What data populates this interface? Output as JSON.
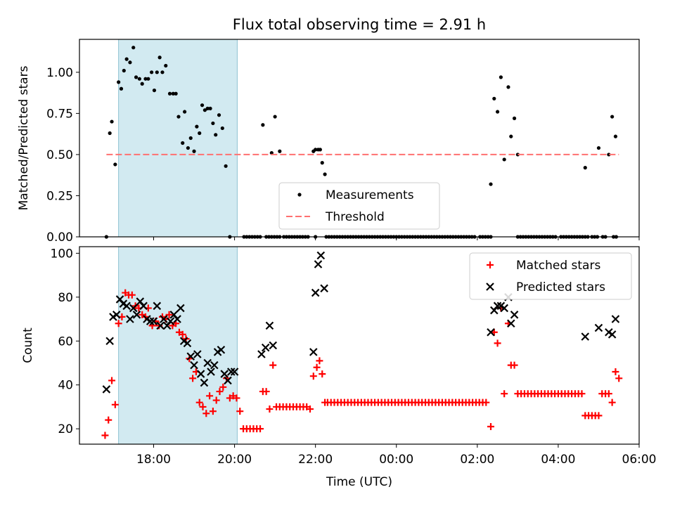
{
  "figure": {
    "title": "Flux total observing time = 2.91 h"
  },
  "chart_data": [
    {
      "type": "scatter",
      "title": "Flux total observing time = 2.91 h",
      "xlabel": "",
      "ylabel": "Matched/Predicted stars",
      "xlim": [
        "16:10",
        "06:00"
      ],
      "ylim": [
        0,
        1.2
      ],
      "yticks": [
        0.0,
        0.25,
        0.5,
        0.75,
        1.0
      ],
      "ytick_labels": [
        "0.00",
        "0.25",
        "0.50",
        "0.75",
        "1.00"
      ],
      "shaded_region": {
        "x_start": "17:08",
        "x_end": "20:04",
        "color": "#add8e6"
      },
      "legend": {
        "placement": "lower center",
        "entries": [
          "Measurements",
          "Threshold"
        ]
      },
      "series": [
        {
          "name": "Measurements",
          "marker": "dot",
          "color": "#000000",
          "points": [
            [
              "16:50",
              0.0
            ],
            [
              "16:55",
              0.63
            ],
            [
              "16:58",
              0.7
            ],
            [
              "17:03",
              0.44
            ],
            [
              "17:08",
              0.94
            ],
            [
              "17:12",
              0.9
            ],
            [
              "17:16",
              1.01
            ],
            [
              "17:20",
              1.08
            ],
            [
              "17:25",
              1.06
            ],
            [
              "17:30",
              1.15
            ],
            [
              "17:34",
              0.97
            ],
            [
              "17:39",
              0.96
            ],
            [
              "17:43",
              0.93
            ],
            [
              "17:48",
              0.96
            ],
            [
              "17:52",
              0.96
            ],
            [
              "17:57",
              1.0
            ],
            [
              "18:01",
              0.89
            ],
            [
              "18:05",
              1.0
            ],
            [
              "18:09",
              1.09
            ],
            [
              "18:13",
              1.0
            ],
            [
              "18:18",
              1.04
            ],
            [
              "18:24",
              0.87
            ],
            [
              "18:29",
              0.87
            ],
            [
              "18:33",
              0.87
            ],
            [
              "18:37",
              0.73
            ],
            [
              "18:43",
              0.57
            ],
            [
              "18:46",
              0.76
            ],
            [
              "18:51",
              0.54
            ],
            [
              "18:55",
              0.6
            ],
            [
              "19:00",
              0.52
            ],
            [
              "19:04",
              0.67
            ],
            [
              "19:08",
              0.63
            ],
            [
              "19:12",
              0.8
            ],
            [
              "19:16",
              0.77
            ],
            [
              "19:20",
              0.78
            ],
            [
              "19:24",
              0.78
            ],
            [
              "19:28",
              0.69
            ],
            [
              "19:32",
              0.62
            ],
            [
              "19:37",
              0.74
            ],
            [
              "19:42",
              0.66
            ],
            [
              "19:47",
              0.43
            ],
            [
              "19:53",
              0.0
            ],
            [
              "20:42",
              0.68
            ],
            [
              "20:55",
              0.51
            ],
            [
              "21:00",
              0.73
            ],
            [
              "21:07",
              0.52
            ],
            [
              "21:57",
              0.52
            ],
            [
              "22:00",
              0.53
            ],
            [
              "22:04",
              0.53
            ],
            [
              "22:07",
              0.53
            ],
            [
              "22:10",
              0.45
            ],
            [
              "22:14",
              0.38
            ],
            [
              "02:20",
              0.32
            ],
            [
              "02:25",
              0.84
            ],
            [
              "02:30",
              0.76
            ],
            [
              "02:35",
              0.97
            ],
            [
              "02:40",
              0.47
            ],
            [
              "02:46",
              0.91
            ],
            [
              "02:50",
              0.61
            ],
            [
              "02:55",
              0.72
            ],
            [
              "03:00",
              0.5
            ],
            [
              "04:40",
              0.42
            ],
            [
              "05:00",
              0.54
            ],
            [
              "05:15",
              0.5
            ],
            [
              "05:20",
              0.73
            ],
            [
              "05:25",
              0.61
            ]
          ],
          "zero_runs": [
            [
              "20:14",
              "20:38"
            ],
            [
              "20:47",
              "21:10"
            ],
            [
              "21:13",
              "21:50"
            ],
            [
              "22:16",
              "02:20"
            ],
            [
              "03:04",
              "04:46"
            ],
            [
              "04:50",
              "05:00"
            ],
            [
              "05:06",
              "05:10"
            ],
            [
              "05:22",
              "05:26"
            ]
          ]
        },
        {
          "name": "Threshold",
          "style": "dashed",
          "color": "#ff7070",
          "points": [
            [
              "16:50",
              0.5
            ],
            [
              "05:30",
              0.5
            ]
          ]
        }
      ]
    },
    {
      "type": "scatter",
      "title": "",
      "xlabel": "Time (UTC)",
      "ylabel": "Count",
      "xlim": [
        "16:10",
        "06:00"
      ],
      "ylim": [
        13,
        103
      ],
      "yticks": [
        20,
        40,
        60,
        80,
        100
      ],
      "ytick_labels": [
        "20",
        "40",
        "60",
        "80",
        "100"
      ],
      "xticks": [
        "18:00",
        "20:00",
        "22:00",
        "00:00",
        "02:00",
        "04:00",
        "06:00"
      ],
      "shaded_region": {
        "x_start": "17:08",
        "x_end": "20:04",
        "color": "#add8e6"
      },
      "legend": {
        "placement": "upper right",
        "entries": [
          "Matched stars",
          "Predicted stars"
        ]
      },
      "series": [
        {
          "name": "Matched stars",
          "marker": "plus",
          "color": "#ff0000",
          "points": [
            [
              "16:48",
              17
            ],
            [
              "16:53",
              24
            ],
            [
              "16:58",
              42
            ],
            [
              "17:03",
              31
            ],
            [
              "17:08",
              68
            ],
            [
              "17:13",
              71
            ],
            [
              "17:18",
              82
            ],
            [
              "17:23",
              81
            ],
            [
              "17:28",
              81
            ],
            [
              "17:33",
              76
            ],
            [
              "17:38",
              75
            ],
            [
              "17:43",
              72
            ],
            [
              "17:48",
              71
            ],
            [
              "17:52",
              75
            ],
            [
              "17:58",
              67
            ],
            [
              "18:03",
              69
            ],
            [
              "18:08",
              67
            ],
            [
              "18:13",
              71
            ],
            [
              "18:18",
              70
            ],
            [
              "18:23",
              72
            ],
            [
              "18:28",
              67
            ],
            [
              "18:33",
              68
            ],
            [
              "18:38",
              64
            ],
            [
              "18:43",
              63
            ],
            [
              "18:48",
              61
            ],
            [
              "18:53",
              52
            ],
            [
              "18:58",
              43
            ],
            [
              "19:03",
              46
            ],
            [
              "19:08",
              32
            ],
            [
              "19:13",
              30
            ],
            [
              "19:18",
              27
            ],
            [
              "19:23",
              35
            ],
            [
              "19:28",
              28
            ],
            [
              "19:33",
              33
            ],
            [
              "19:38",
              37
            ],
            [
              "19:43",
              39
            ],
            [
              "19:48",
              43
            ],
            [
              "19:53",
              34
            ],
            [
              "19:58",
              35
            ],
            [
              "20:03",
              34
            ],
            [
              "20:08",
              28
            ],
            [
              "20:13",
              20
            ],
            [
              "20:18",
              20
            ],
            [
              "20:23",
              20
            ],
            [
              "20:28",
              20
            ],
            [
              "20:33",
              20
            ],
            [
              "20:38",
              20
            ],
            [
              "20:42",
              37
            ],
            [
              "20:47",
              37
            ],
            [
              "20:52",
              29
            ],
            [
              "20:57",
              49
            ],
            [
              "21:02",
              30
            ],
            [
              "21:07",
              30
            ],
            [
              "21:12",
              30
            ],
            [
              "21:17",
              30
            ],
            [
              "21:22",
              30
            ],
            [
              "21:27",
              30
            ],
            [
              "21:32",
              30
            ],
            [
              "21:37",
              30
            ],
            [
              "21:42",
              30
            ],
            [
              "21:47",
              30
            ],
            [
              "21:52",
              29
            ],
            [
              "21:57",
              44
            ],
            [
              "22:02",
              48
            ],
            [
              "22:06",
              51
            ],
            [
              "22:10",
              45
            ],
            [
              "22:14",
              32
            ],
            [
              "02:20",
              21
            ],
            [
              "02:25",
              64
            ],
            [
              "02:30",
              59
            ],
            [
              "02:35",
              75
            ],
            [
              "02:40",
              36
            ],
            [
              "02:46",
              68
            ],
            [
              "02:50",
              49
            ],
            [
              "02:55",
              49
            ],
            [
              "03:00",
              36
            ],
            [
              "04:40",
              26
            ],
            [
              "04:45",
              26
            ],
            [
              "04:50",
              26
            ],
            [
              "04:55",
              26
            ],
            [
              "05:00",
              26
            ],
            [
              "05:05",
              36
            ],
            [
              "05:10",
              36
            ],
            [
              "05:15",
              36
            ],
            [
              "05:20",
              32
            ],
            [
              "05:25",
              46
            ],
            [
              "05:30",
              43
            ]
          ],
          "flat_runs": [
            {
              "from": "22:18",
              "to": "02:15",
              "value": 32
            },
            {
              "from": "03:05",
              "to": "04:35",
              "value": 36
            }
          ]
        },
        {
          "name": "Predicted stars",
          "marker": "x",
          "color": "#000000",
          "points": [
            [
              "16:50",
              38
            ],
            [
              "16:55",
              60
            ],
            [
              "17:00",
              71
            ],
            [
              "17:05",
              72
            ],
            [
              "17:10",
              79
            ],
            [
              "17:15",
              77
            ],
            [
              "17:20",
              76
            ],
            [
              "17:25",
              70
            ],
            [
              "17:30",
              75
            ],
            [
              "17:35",
              72
            ],
            [
              "17:40",
              78
            ],
            [
              "17:45",
              76
            ],
            [
              "17:50",
              70
            ],
            [
              "17:55",
              69
            ],
            [
              "18:00",
              69
            ],
            [
              "18:05",
              76
            ],
            [
              "18:10",
              67
            ],
            [
              "18:15",
              70
            ],
            [
              "18:20",
              67
            ],
            [
              "18:25",
              69
            ],
            [
              "18:30",
              72
            ],
            [
              "18:35",
              70
            ],
            [
              "18:40",
              75
            ],
            [
              "18:45",
              60
            ],
            [
              "18:50",
              59
            ],
            [
              "18:55",
              53
            ],
            [
              "19:00",
              49
            ],
            [
              "19:05",
              54
            ],
            [
              "19:10",
              45
            ],
            [
              "19:15",
              41
            ],
            [
              "19:20",
              50
            ],
            [
              "19:25",
              46
            ],
            [
              "19:30",
              49
            ],
            [
              "19:35",
              55
            ],
            [
              "19:40",
              56
            ],
            [
              "19:45",
              45
            ],
            [
              "19:50",
              42
            ],
            [
              "19:55",
              46
            ],
            [
              "20:00",
              46
            ],
            [
              "20:40",
              54
            ],
            [
              "20:46",
              57
            ],
            [
              "20:52",
              67
            ],
            [
              "20:57",
              58
            ],
            [
              "21:57",
              55
            ],
            [
              "22:00",
              82
            ],
            [
              "22:04",
              95
            ],
            [
              "22:08",
              99
            ],
            [
              "22:13",
              84
            ],
            [
              "02:20",
              64
            ],
            [
              "02:25",
              74
            ],
            [
              "02:30",
              76
            ],
            [
              "02:35",
              76
            ],
            [
              "02:40",
              75
            ],
            [
              "02:46",
              80
            ],
            [
              "02:50",
              68
            ],
            [
              "02:55",
              72
            ],
            [
              "04:40",
              62
            ],
            [
              "05:00",
              66
            ],
            [
              "05:15",
              64
            ],
            [
              "05:20",
              63
            ],
            [
              "05:25",
              70
            ]
          ]
        }
      ]
    }
  ]
}
